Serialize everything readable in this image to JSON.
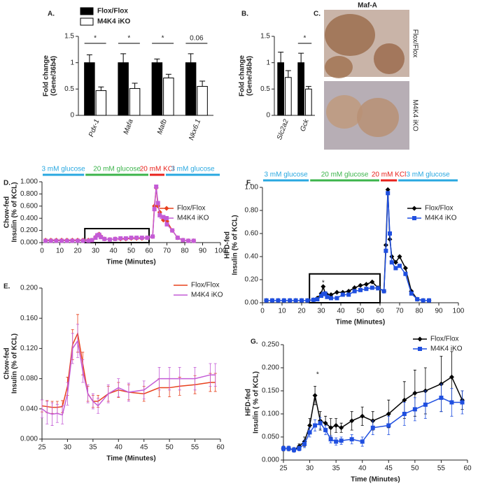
{
  "chart_data": [
    {
      "type": "bar",
      "panel_label": "A.",
      "y_label": [
        "Fold change",
        "(Gene/36b4)"
      ],
      "categories": [
        "Pdx-1",
        "Mafa",
        "Mafb",
        "Nkx6.1"
      ],
      "series": [
        {
          "name": "Flox/Flox",
          "color": "#000000",
          "values": [
            1,
            1,
            1,
            1
          ],
          "errors": [
            0.15,
            0.17,
            0.07,
            0.17
          ]
        },
        {
          "name": "M4K4 iKO",
          "color": "#ffffff",
          "values": [
            0.47,
            0.51,
            0.71,
            0.55
          ],
          "errors": [
            0.07,
            0.1,
            0.07,
            0.1
          ]
        }
      ],
      "significance": [
        "*",
        "*",
        "*",
        "0.06"
      ],
      "ylim": [
        0,
        1.5
      ],
      "yticks": [
        0,
        0.5,
        1,
        1.5
      ]
    },
    {
      "type": "bar",
      "panel_label": "B.",
      "y_label": [
        "Fold change",
        "(Gene/36b4)"
      ],
      "categories": [
        "Slc2a2",
        "Gck"
      ],
      "series": [
        {
          "color": "#000000",
          "values": [
            1,
            1
          ],
          "errors": [
            0.2,
            0.18
          ]
        },
        {
          "color": "#ffffff",
          "values": [
            0.72,
            0.5
          ],
          "errors": [
            0.13,
            0.05
          ]
        }
      ],
      "significance": [
        null,
        "*"
      ],
      "ylim": [
        0,
        1.5
      ],
      "yticks": [
        0,
        0.5,
        1,
        1.5
      ]
    },
    {
      "type": "line",
      "panel_label": "D.",
      "y_label": [
        "Chow-fed",
        "Insulin (% of KCL)"
      ],
      "x_label": "Time (Minutes)",
      "phases": [
        {
          "label": "3 mM glucose",
          "color": "#29a8e0",
          "start": 0,
          "end": 24
        },
        {
          "label": "20 mM glucose",
          "color": "#3cb44b",
          "start": 24,
          "end": 60
        },
        {
          "label": "20 mM KCl",
          "color": "#e8221c",
          "start": 60,
          "end": 69
        },
        {
          "label": "3 mM glucose",
          "color": "#29a8e0",
          "start": 69,
          "end": 100
        }
      ],
      "zoom_box": {
        "xlim": [
          24,
          60
        ],
        "ylim": [
          0,
          0.23
        ]
      },
      "x": [
        2,
        5,
        8,
        11,
        14,
        17,
        20,
        23,
        26,
        28,
        30,
        31,
        32,
        33,
        35,
        38,
        41,
        44,
        47,
        50,
        53,
        56,
        59,
        62,
        63,
        64,
        65,
        66,
        68,
        70,
        73,
        76,
        79,
        82,
        85
      ],
      "series": [
        {
          "name": "Flox/Flox",
          "color": "#e8401c",
          "marker": "diamond",
          "values": [
            0.04,
            0.04,
            0.04,
            0.04,
            0.04,
            0.04,
            0.04,
            0.04,
            0.04,
            0.04,
            0.09,
            0.12,
            0.14,
            0.1,
            0.06,
            0.05,
            0.06,
            0.06,
            0.06,
            0.07,
            0.07,
            0.07,
            0.08,
            0.1,
            0.6,
            0.9,
            0.6,
            0.5,
            0.37,
            0.35,
            0.2,
            0.08,
            0.04,
            0.03,
            0.03
          ]
        },
        {
          "name": "M4K4 iKO",
          "color": "#c45bd6",
          "marker": "square",
          "values": [
            0.03,
            0.03,
            0.03,
            0.03,
            0.03,
            0.03,
            0.03,
            0.03,
            0.03,
            0.04,
            0.08,
            0.12,
            0.13,
            0.09,
            0.06,
            0.05,
            0.06,
            0.07,
            0.07,
            0.08,
            0.08,
            0.08,
            0.08,
            0.1,
            0.55,
            0.92,
            0.65,
            0.45,
            0.42,
            0.3,
            0.2,
            0.08,
            0.04,
            0.03,
            0.03
          ]
        }
      ],
      "xlim": [
        0,
        100
      ],
      "xticks": [
        0,
        10,
        20,
        30,
        40,
        50,
        60,
        70,
        80,
        90,
        100
      ],
      "ylim": [
        0,
        1
      ],
      "yticks": [
        {
          "value": 0,
          "label": "0.000"
        },
        {
          "value": 0.2,
          "label": "0.200"
        },
        {
          "value": 0.4,
          "label": "0.400"
        },
        {
          "value": 0.6,
          "label": "0.600"
        },
        {
          "value": 0.8,
          "label": "0.800"
        },
        {
          "value": 1,
          "label": "1.000"
        }
      ]
    },
    {
      "type": "line",
      "panel_label": "E.",
      "y_label": [
        "Chow-fed",
        "Insulin (% of KCL)"
      ],
      "x_label": "Time (Minutes)",
      "x": [
        25,
        26,
        27,
        28,
        29,
        30,
        31,
        32,
        33,
        34,
        35,
        36,
        38,
        40,
        42,
        45,
        48,
        50,
        52,
        55,
        58,
        59
      ],
      "series": [
        {
          "name": "Flox/Flox",
          "color": "#e8401c",
          "marker": "none",
          "values": [
            0.044,
            0.043,
            0.042,
            0.042,
            0.043,
            0.07,
            0.125,
            0.14,
            0.1,
            0.06,
            0.05,
            0.05,
            0.06,
            0.065,
            0.062,
            0.06,
            0.068,
            0.068,
            0.07,
            0.072,
            0.075,
            0.075
          ],
          "errors": [
            0.008,
            0.008,
            0.008,
            0.008,
            0.008,
            0.012,
            0.02,
            0.025,
            0.015,
            0.01,
            0.008,
            0.008,
            0.01,
            0.01,
            0.01,
            0.01,
            0.012,
            0.012,
            0.012,
            0.012,
            0.012,
            0.012
          ]
        },
        {
          "name": "M4K4 iKO",
          "color": "#c45bd6",
          "marker": "none",
          "values": [
            0.04,
            0.035,
            0.033,
            0.034,
            0.032,
            0.06,
            0.12,
            0.13,
            0.09,
            0.06,
            0.05,
            0.044,
            0.06,
            0.068,
            0.062,
            0.065,
            0.08,
            0.08,
            0.08,
            0.08,
            0.085,
            0.085
          ],
          "errors": [
            0.012,
            0.015,
            0.015,
            0.012,
            0.012,
            0.015,
            0.02,
            0.022,
            0.015,
            0.012,
            0.01,
            0.01,
            0.012,
            0.012,
            0.012,
            0.012,
            0.015,
            0.015,
            0.015,
            0.015,
            0.015,
            0.015
          ]
        }
      ],
      "xlim": [
        25,
        60
      ],
      "xticks": [
        25,
        30,
        35,
        40,
        45,
        50,
        55,
        60
      ],
      "ylim": [
        0,
        0.2
      ],
      "yticks": [
        {
          "value": 0,
          "label": "0.000"
        },
        {
          "value": 0.04,
          "label": "0.040"
        },
        {
          "value": 0.08,
          "label": "0.080"
        },
        {
          "value": 0.12,
          "label": "0.120"
        },
        {
          "value": 0.16,
          "label": "0.160"
        },
        {
          "value": 0.2,
          "label": "0.200"
        }
      ]
    },
    {
      "type": "line",
      "panel_label": "F.",
      "y_label": [
        "HFD-fed",
        "Insulin (% of KCL)"
      ],
      "x_label": "Time (Minutes)",
      "phases": [
        {
          "label": "3 mM glucose",
          "color": "#29a8e0",
          "start": 0,
          "end": 24
        },
        {
          "label": "20 mM glucose",
          "color": "#3cb44b",
          "start": 24,
          "end": 60
        },
        {
          "label": "20 mM KCl",
          "color": "#e8221c",
          "start": 60,
          "end": 69
        },
        {
          "label": "3 mM glucose",
          "color": "#29a8e0",
          "start": 69,
          "end": 100
        }
      ],
      "zoom_box": {
        "xlim": [
          24,
          60
        ],
        "ylim": [
          0,
          0.25
        ]
      },
      "annotations": [
        {
          "text": "*",
          "x": 31,
          "y": 0.17
        }
      ],
      "x": [
        2,
        5,
        8,
        11,
        14,
        17,
        20,
        23,
        26,
        28,
        30,
        31,
        32,
        33,
        35,
        38,
        41,
        44,
        47,
        50,
        53,
        56,
        59,
        62,
        63,
        64,
        65,
        66,
        68,
        70,
        73,
        76,
        79,
        82,
        85
      ],
      "series": [
        {
          "name": "Flox/Flox",
          "color": "#000000",
          "marker": "diamond",
          "values": [
            0.02,
            0.02,
            0.02,
            0.02,
            0.02,
            0.02,
            0.02,
            0.02,
            0.025,
            0.04,
            0.08,
            0.14,
            0.08,
            0.07,
            0.07,
            0.09,
            0.09,
            0.1,
            0.13,
            0.15,
            0.16,
            0.18,
            0.13,
            0.1,
            0.5,
            0.98,
            0.55,
            0.4,
            0.35,
            0.4,
            0.3,
            0.1,
            0.03,
            0.02,
            0.02
          ]
        },
        {
          "name": "M4K4 iKO",
          "color": "#1f4fe0",
          "marker": "square",
          "values": [
            0.02,
            0.02,
            0.02,
            0.02,
            0.02,
            0.02,
            0.02,
            0.02,
            0.025,
            0.03,
            0.06,
            0.075,
            0.08,
            0.05,
            0.04,
            0.04,
            0.07,
            0.07,
            0.1,
            0.11,
            0.12,
            0.13,
            0.125,
            0.1,
            0.45,
            0.95,
            0.6,
            0.35,
            0.3,
            0.32,
            0.25,
            0.08,
            0.03,
            0.02,
            0.02
          ]
        }
      ],
      "xlim": [
        0,
        100
      ],
      "xticks": [
        0,
        10,
        20,
        30,
        40,
        50,
        60,
        70,
        80,
        90,
        100
      ],
      "ylim": [
        0,
        1
      ],
      "yticks": [
        {
          "value": 0,
          "label": "0.00"
        },
        {
          "value": 0.2,
          "label": "0.20"
        },
        {
          "value": 0.4,
          "label": "0.40"
        },
        {
          "value": 0.6,
          "label": "0.60"
        },
        {
          "value": 0.8,
          "label": "0.80"
        },
        {
          "value": 1,
          "label": "1.00"
        }
      ]
    },
    {
      "type": "line",
      "panel_label": "G.",
      "y_label": [
        "HFD-fed",
        "Insulin ( % of KCL)"
      ],
      "x_label": "Time (Minutes)",
      "annotations": [
        {
          "text": "*",
          "x": 31.5,
          "y": 0.185
        }
      ],
      "x": [
        25,
        26,
        27,
        28,
        29,
        30,
        31,
        32,
        33,
        34,
        35,
        36,
        38,
        40,
        42,
        45,
        48,
        50,
        52,
        55,
        57,
        59
      ],
      "series": [
        {
          "name": "Flox/Flox",
          "color": "#000000",
          "marker": "diamond",
          "values": [
            0.025,
            0.025,
            0.022,
            0.03,
            0.04,
            0.075,
            0.14,
            0.085,
            0.08,
            0.07,
            0.075,
            0.07,
            0.085,
            0.095,
            0.085,
            0.1,
            0.13,
            0.145,
            0.15,
            0.165,
            0.18,
            0.13
          ],
          "errors": [
            0.005,
            0.005,
            0.005,
            0.005,
            0.01,
            0.015,
            0.02,
            0.02,
            0.015,
            0.02,
            0.015,
            0.01,
            0.02,
            0.02,
            0.02,
            0.03,
            0.04,
            0.05,
            0.05,
            0.06,
            0.055,
            0.02
          ]
        },
        {
          "name": "M4K4 iKO",
          "color": "#1f4fe0",
          "marker": "square",
          "values": [
            0.025,
            0.025,
            0.022,
            0.025,
            0.035,
            0.06,
            0.075,
            0.08,
            0.065,
            0.045,
            0.04,
            0.042,
            0.045,
            0.04,
            0.07,
            0.075,
            0.1,
            0.11,
            0.12,
            0.135,
            0.125,
            0.125
          ],
          "errors": [
            0.005,
            0.005,
            0.005,
            0.005,
            0.008,
            0.01,
            0.012,
            0.012,
            0.01,
            0.008,
            0.008,
            0.008,
            0.01,
            0.01,
            0.015,
            0.02,
            0.025,
            0.025,
            0.03,
            0.03,
            0.03,
            0.025
          ]
        }
      ],
      "xlim": [
        25,
        60
      ],
      "xticks": [
        25,
        30,
        35,
        40,
        45,
        50,
        55,
        60
      ],
      "ylim": [
        0,
        0.25
      ],
      "yticks": [
        {
          "value": 0,
          "label": "0.000"
        },
        {
          "value": 0.05,
          "label": "0.050"
        },
        {
          "value": 0.1,
          "label": "0.100"
        },
        {
          "value": 0.15,
          "label": "0.150"
        },
        {
          "value": 0.2,
          "label": "0.200"
        },
        {
          "value": 0.25,
          "label": "0.250"
        }
      ]
    }
  ],
  "image_panel": {
    "label": "C.",
    "title": "Maf-A",
    "captions": [
      "Flox/Flox",
      "M4K4 iKO"
    ]
  }
}
